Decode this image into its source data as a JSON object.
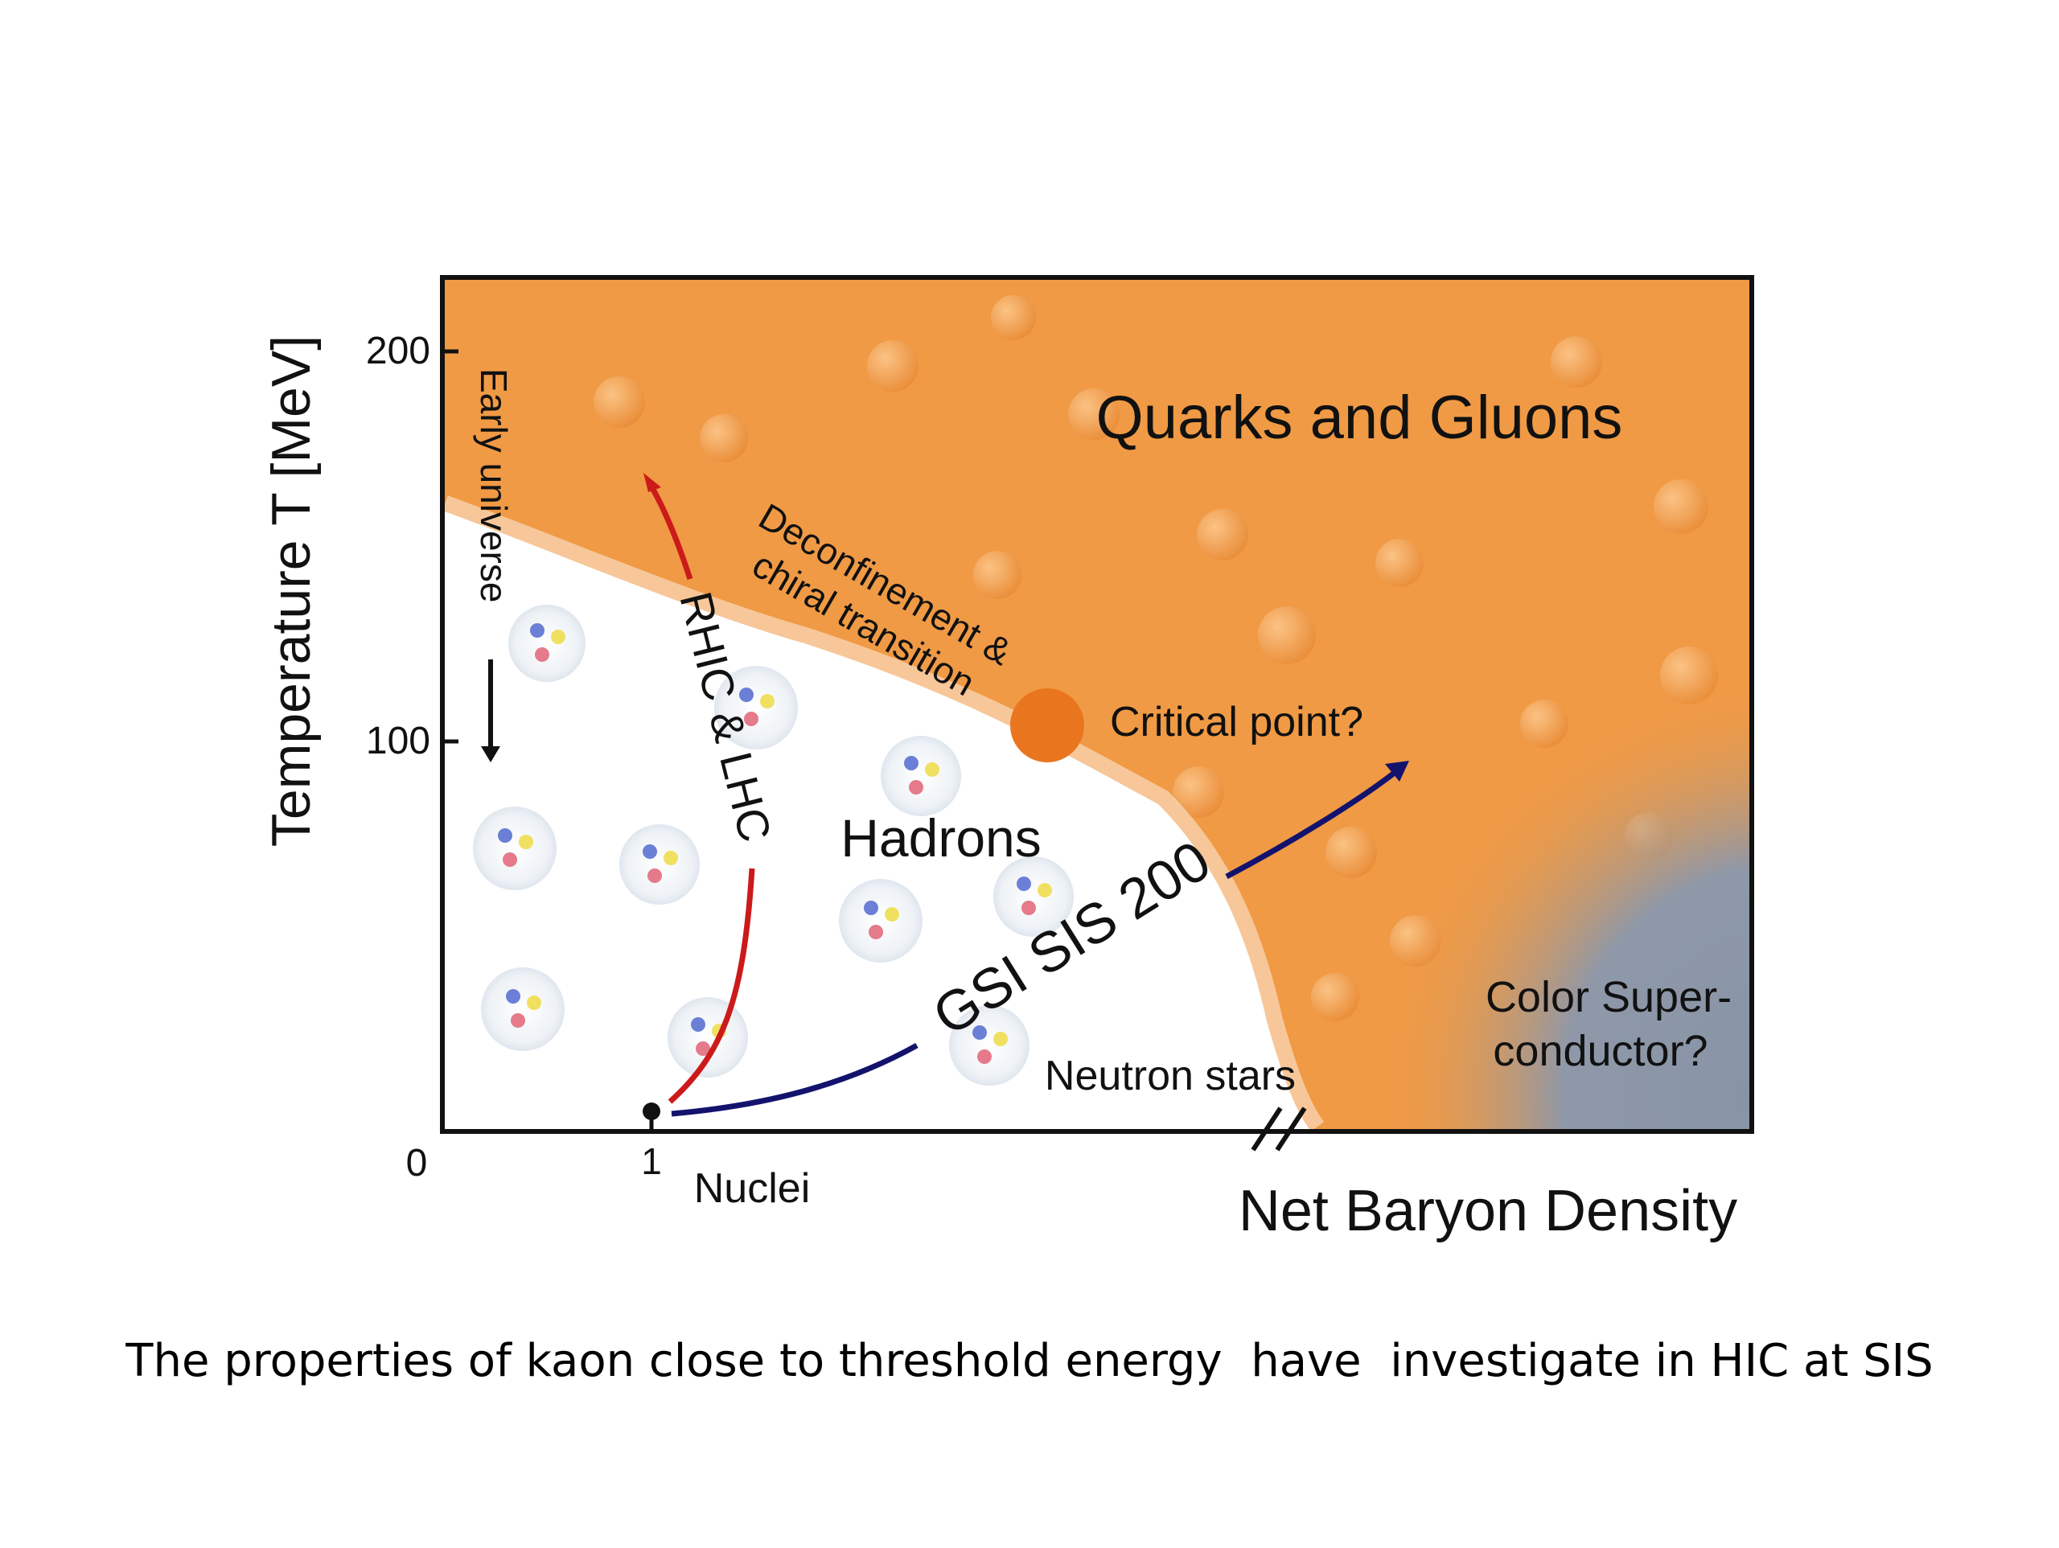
{
  "diagram": {
    "y_axis": {
      "label": "Temperature T [MeV]",
      "ticks": [
        "200",
        "100",
        "0"
      ]
    },
    "x_axis": {
      "label": "Net Baryon Density",
      "tick": "1",
      "tick_label": "Nuclei"
    },
    "regions": {
      "qgp": "Quarks and Gluons",
      "hadrons": "Hadrons",
      "color_sc_line1": "Color Super-",
      "color_sc_line2": "conductor?",
      "neutron_stars": "Neutron stars"
    },
    "annotations": {
      "early_universe": "Early universe",
      "rhic_lhc": "RHIC & LHC",
      "gsi_sis": "GSI SIS 200",
      "deconf_line1": "Deconfinement &",
      "deconf_line2": "chiral transition",
      "critical_point": "Critical point?"
    },
    "colors": {
      "qgp_orange": "#f09a45",
      "critical_point": "#e9761f",
      "color_superconductor": "#8a96a8",
      "rhic_arrow": "#cc1a1a",
      "gsi_arrow": "#13136e"
    }
  },
  "caption": "The properties of kaon close to threshold energy  have  investigate in HIC at SIS"
}
